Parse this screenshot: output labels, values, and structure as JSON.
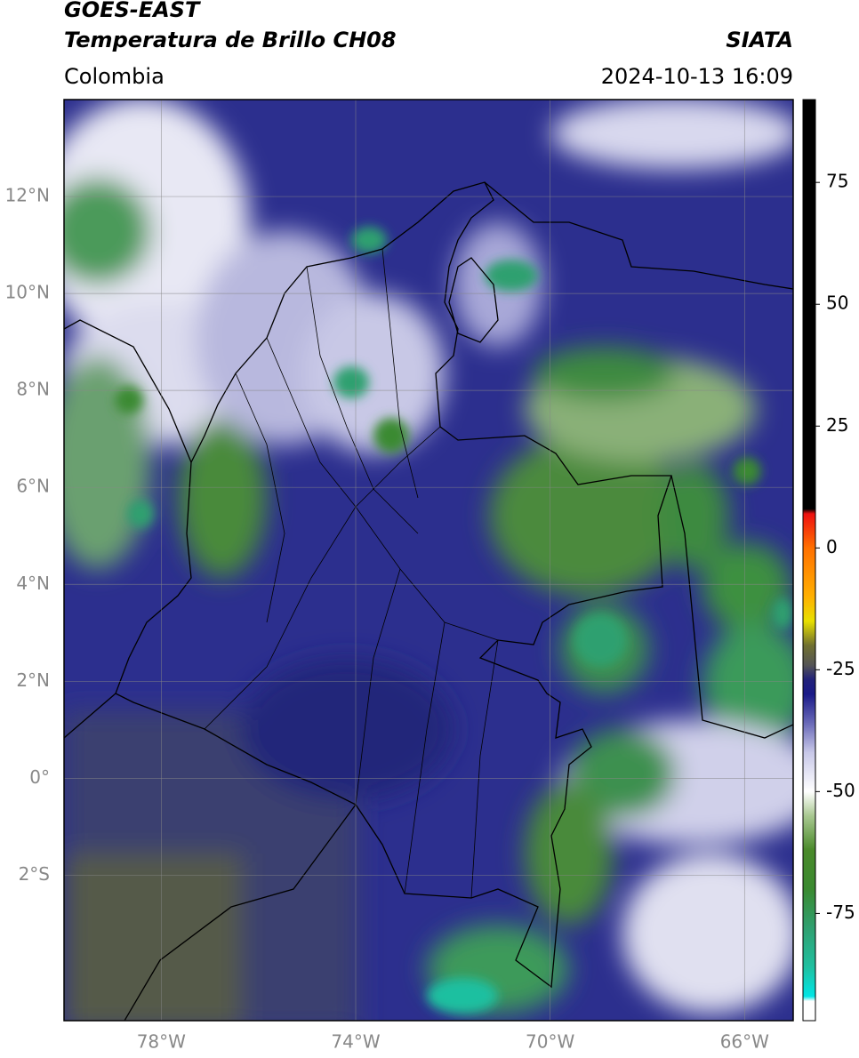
{
  "header": {
    "title": "GOES-EAST",
    "subtitle": "Temperatura de Brillo CH08",
    "source": "SIATA",
    "region": "Colombia",
    "datetime": "2024-10-13 16:09"
  },
  "map": {
    "xlim": [
      -80,
      -65
    ],
    "ylim": [
      -5,
      14
    ],
    "grid": true,
    "xticks": [
      {
        "value": -78,
        "label": "78°W"
      },
      {
        "value": -74,
        "label": "74°W"
      },
      {
        "value": -70,
        "label": "70°W"
      },
      {
        "value": -66,
        "label": "66°W"
      }
    ],
    "yticks": [
      {
        "value": 12,
        "label": "12°N"
      },
      {
        "value": 10,
        "label": "10°N"
      },
      {
        "value": 8,
        "label": "8°N"
      },
      {
        "value": 6,
        "label": "6°N"
      },
      {
        "value": 4,
        "label": "4°N"
      },
      {
        "value": 2,
        "label": "2°N"
      },
      {
        "value": 0,
        "label": "0°"
      },
      {
        "value": -2,
        "label": "2°S"
      }
    ]
  },
  "colorbar": {
    "lim": [
      -97,
      92
    ],
    "ticks": [
      75,
      50,
      25,
      0,
      -25,
      -50,
      -75
    ],
    "stops": [
      {
        "value": -97,
        "color": "#ffffff"
      },
      {
        "value": -93,
        "color": "#ffffff"
      },
      {
        "value": -92,
        "color": "#00e5e5"
      },
      {
        "value": -86,
        "color": "#1fc0a0"
      },
      {
        "value": -78,
        "color": "#2fa070"
      },
      {
        "value": -70,
        "color": "#3a8a30"
      },
      {
        "value": -62,
        "color": "#4a8a2a"
      },
      {
        "value": -55,
        "color": "#a8c890"
      },
      {
        "value": -50,
        "color": "#ffffff"
      },
      {
        "value": -42,
        "color": "#c8c8e8"
      },
      {
        "value": -36,
        "color": "#6a6ab8"
      },
      {
        "value": -30,
        "color": "#1a1a88"
      },
      {
        "value": -27,
        "color": "#22227a"
      },
      {
        "value": -24,
        "color": "#555555"
      },
      {
        "value": -20,
        "color": "#707030"
      },
      {
        "value": -15,
        "color": "#e8e000"
      },
      {
        "value": -10,
        "color": "#ffb000"
      },
      {
        "value": 0,
        "color": "#ff7000"
      },
      {
        "value": 7,
        "color": "#ee1010"
      },
      {
        "value": 8,
        "color": "#000000"
      },
      {
        "value": 92,
        "color": "#000000"
      }
    ]
  }
}
